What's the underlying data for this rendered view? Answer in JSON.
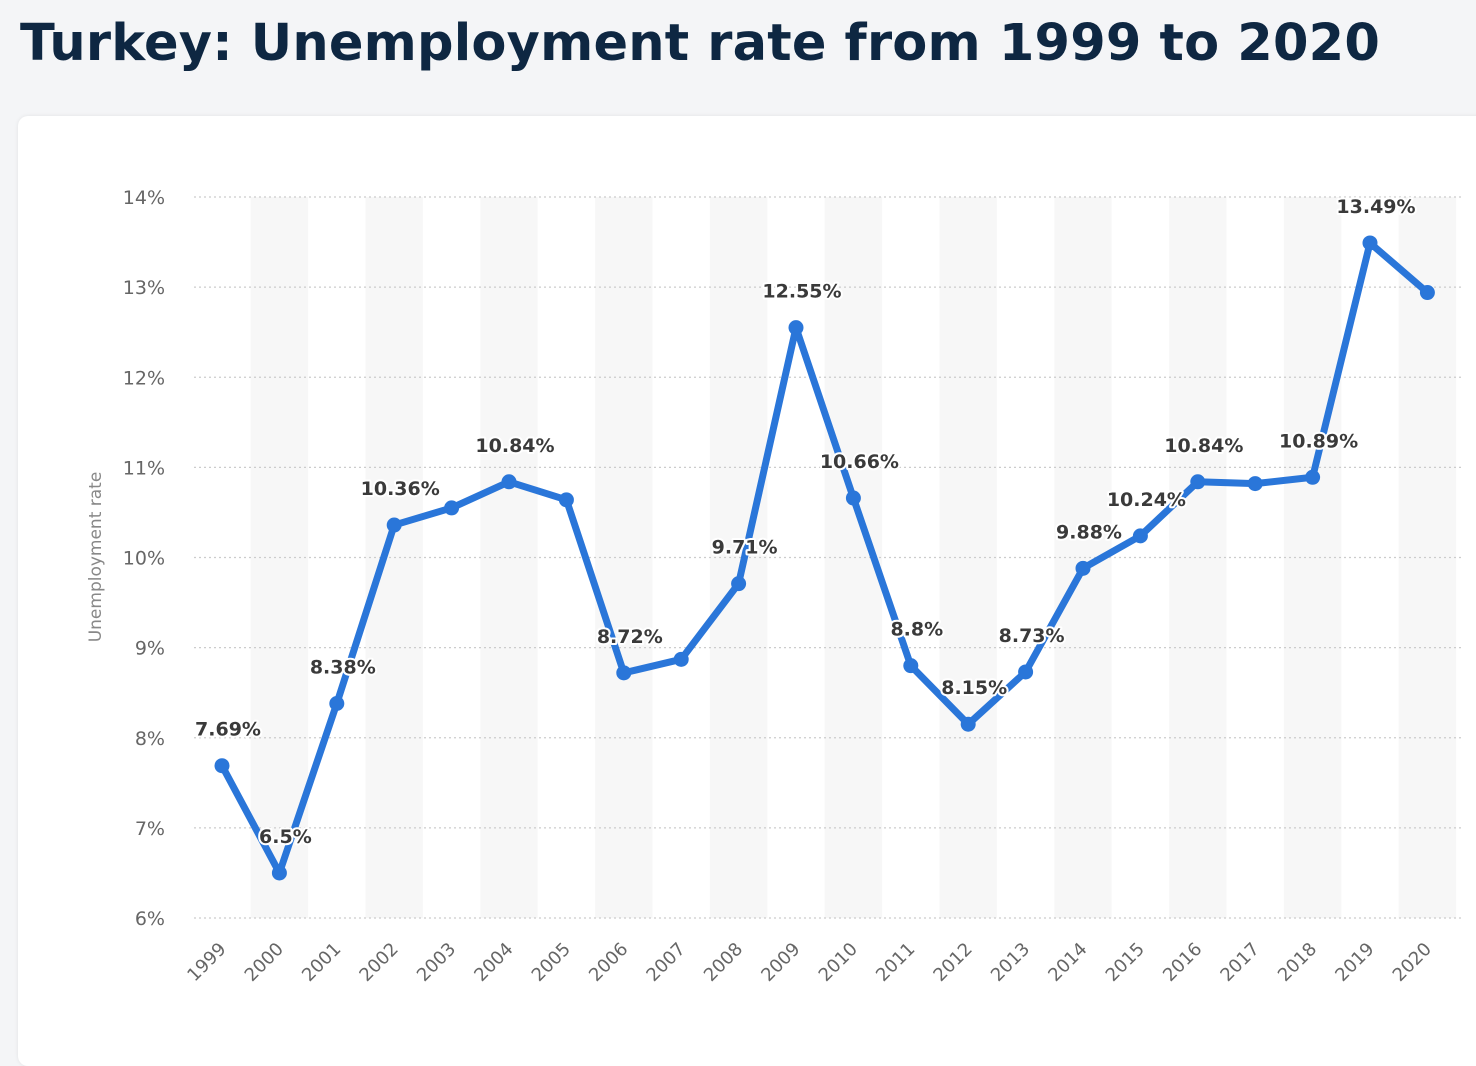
{
  "page": {
    "title": "Turkey: Unemployment rate from 1999 to 2020"
  },
  "colors": {
    "line": "#2a76d9",
    "title": "#0e2742",
    "band": "#f7f7f7",
    "grid": "#cccccc"
  },
  "chart_data": {
    "type": "line",
    "title": "Turkey: Unemployment rate from 1999 to 2020",
    "xlabel": "",
    "ylabel": "Unemployment rate",
    "ylim": [
      6,
      14
    ],
    "y_ticks": [
      "6%",
      "7%",
      "8%",
      "9%",
      "10%",
      "11%",
      "12%",
      "13%",
      "14%"
    ],
    "grid": true,
    "categories": [
      "1999",
      "2000",
      "2001",
      "2002",
      "2003",
      "2004",
      "2005",
      "2006",
      "2007",
      "2008",
      "2009",
      "2010",
      "2011",
      "2012",
      "2013",
      "2014",
      "2015",
      "2016",
      "2017",
      "2018",
      "2019",
      "2020"
    ],
    "series": [
      {
        "values": [
          7.69,
          6.5,
          8.38,
          10.36,
          10.55,
          10.84,
          10.64,
          8.72,
          8.87,
          9.71,
          12.55,
          10.66,
          8.8,
          8.15,
          8.73,
          9.88,
          10.24,
          10.84,
          10.82,
          10.89,
          13.49,
          12.94
        ],
        "data_labels": [
          "7.69%",
          "6.5%",
          "8.38%",
          "10.36%",
          "",
          "10.84%",
          "",
          "8.72%",
          "",
          "9.71%",
          "12.55%",
          "10.66%",
          "8.8%",
          "8.15%",
          "8.73%",
          "9.88%",
          "10.24%",
          "10.84%",
          "",
          "10.89%",
          "13.49%",
          ""
        ]
      }
    ]
  }
}
